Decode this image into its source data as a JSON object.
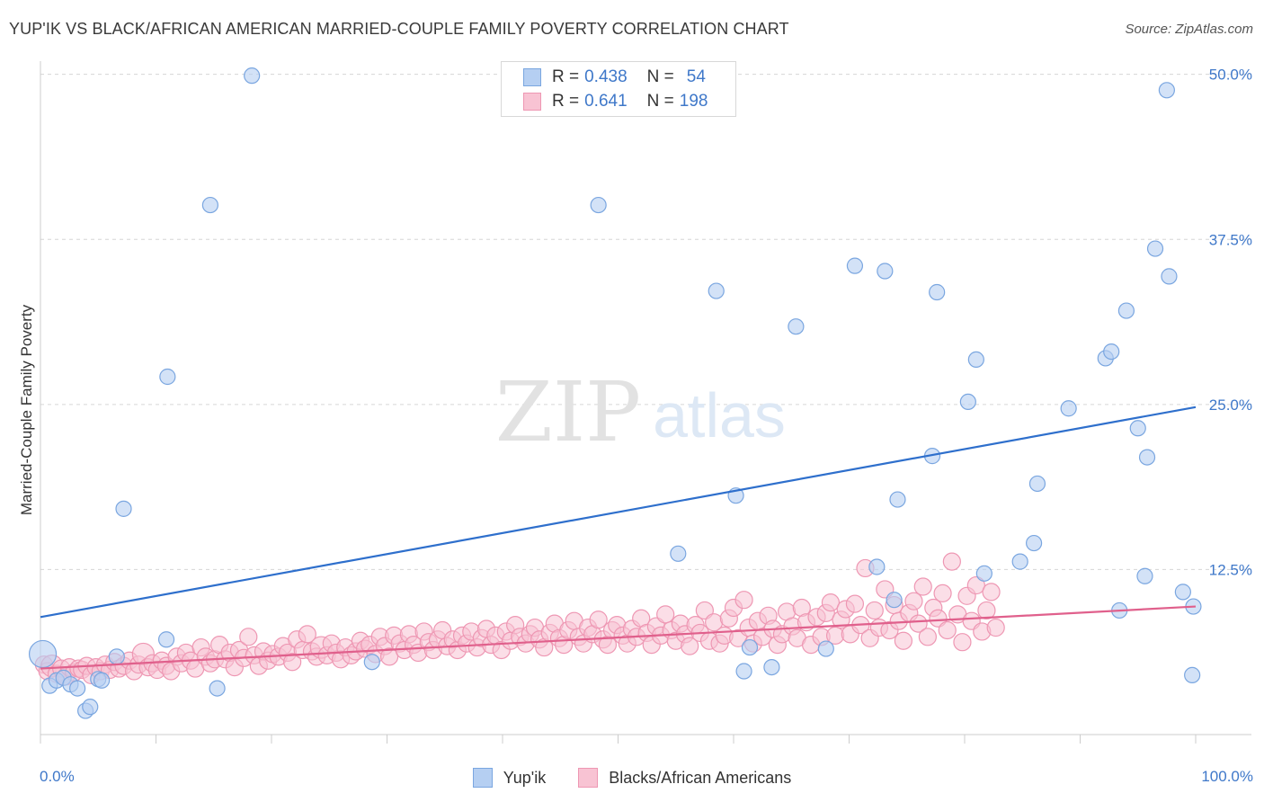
{
  "title": "YUP'IK VS BLACK/AFRICAN AMERICAN MARRIED-COUPLE FAMILY POVERTY CORRELATION CHART",
  "source": "Source: ZipAtlas.com",
  "watermark": {
    "zip": "ZIP",
    "atlas": "atlas"
  },
  "legend": {
    "rows": [
      {
        "r_label": "R =",
        "r_value": "0.438",
        "n_label": "N =",
        "n_value": "54"
      },
      {
        "r_label": "R =",
        "r_value": "0.641",
        "n_label": "N =",
        "n_value": "198"
      }
    ]
  },
  "chart_data": {
    "type": "scatter",
    "title": "YUP'IK VS BLACK/AFRICAN AMERICAN MARRIED-COUPLE FAMILY POVERTY CORRELATION CHART",
    "xlabel": "",
    "ylabel": "Married-Couple Family Poverty",
    "xlim": [
      0,
      100
    ],
    "ylim": [
      0,
      51
    ],
    "x_tick_labels": [
      "0.0%",
      "100.0%"
    ],
    "y_ticks": [
      12.5,
      25.0,
      37.5,
      50.0
    ],
    "y_tick_labels": [
      "12.5%",
      "25.0%",
      "37.5%",
      "50.0%"
    ],
    "grid": "horizontal dashed",
    "legend_position": "top-center",
    "colors": {
      "yupik_fill": "#b5cff2",
      "yupik_stroke": "#7aa6e0",
      "yupik_line": "#2e6fcc",
      "black_fill": "#f8c3d3",
      "black_stroke": "#ee97b3",
      "black_line": "#e0608c",
      "tick_label": "#3f78c9"
    },
    "series": [
      {
        "name": "Yup'ik",
        "trend": {
          "x": [
            0,
            100
          ],
          "y": [
            8.9,
            24.8
          ]
        },
        "points": [
          [
            0.2,
            6.1
          ],
          [
            0.8,
            3.7
          ],
          [
            1.4,
            4.1
          ],
          [
            2.0,
            4.3
          ],
          [
            2.6,
            3.8
          ],
          [
            3.2,
            3.5
          ],
          [
            3.9,
            1.8
          ],
          [
            4.3,
            2.1
          ],
          [
            5.0,
            4.2
          ],
          [
            5.3,
            4.1
          ],
          [
            6.6,
            5.9
          ],
          [
            7.2,
            17.1
          ],
          [
            11.0,
            27.1
          ],
          [
            10.9,
            7.2
          ],
          [
            14.7,
            40.1
          ],
          [
            15.3,
            3.5
          ],
          [
            18.3,
            49.9
          ],
          [
            28.7,
            5.5
          ],
          [
            48.3,
            40.1
          ],
          [
            55.2,
            13.7
          ],
          [
            58.5,
            33.6
          ],
          [
            60.2,
            18.1
          ],
          [
            60.9,
            4.8
          ],
          [
            61.4,
            6.6
          ],
          [
            63.3,
            5.1
          ],
          [
            65.4,
            30.9
          ],
          [
            68.0,
            6.5
          ],
          [
            70.5,
            35.5
          ],
          [
            72.4,
            12.7
          ],
          [
            73.1,
            35.1
          ],
          [
            73.9,
            10.2
          ],
          [
            74.2,
            17.8
          ],
          [
            77.2,
            21.1
          ],
          [
            77.6,
            33.5
          ],
          [
            80.3,
            25.2
          ],
          [
            81.0,
            28.4
          ],
          [
            81.7,
            12.2
          ],
          [
            84.8,
            13.1
          ],
          [
            86.3,
            19.0
          ],
          [
            86.0,
            14.5
          ],
          [
            89.0,
            24.7
          ],
          [
            92.2,
            28.5
          ],
          [
            92.7,
            29.0
          ],
          [
            93.4,
            9.4
          ],
          [
            94.0,
            32.1
          ],
          [
            95.0,
            23.2
          ],
          [
            95.6,
            12.0
          ],
          [
            95.8,
            21.0
          ],
          [
            96.5,
            36.8
          ],
          [
            97.5,
            48.8
          ],
          [
            97.7,
            34.7
          ],
          [
            98.9,
            10.8
          ],
          [
            99.7,
            4.5
          ],
          [
            99.8,
            9.7
          ]
        ]
      },
      {
        "name": "Blacks/African Americans",
        "trend": {
          "x": [
            0,
            100
          ],
          "y": [
            5.0,
            9.7
          ]
        },
        "points": [
          [
            0.3,
            5.3
          ],
          [
            0.6,
            4.8
          ],
          [
            1.0,
            5.2
          ],
          [
            1.4,
            4.6
          ],
          [
            1.8,
            5.0
          ],
          [
            2.2,
            4.4
          ],
          [
            2.5,
            5.1
          ],
          [
            2.9,
            4.7
          ],
          [
            3.3,
            5.0
          ],
          [
            3.6,
            4.9
          ],
          [
            4.0,
            5.2
          ],
          [
            4.4,
            4.5
          ],
          [
            4.8,
            5.1
          ],
          [
            5.2,
            4.8
          ],
          [
            5.6,
            5.3
          ],
          [
            6.0,
            4.9
          ],
          [
            6.4,
            5.5
          ],
          [
            6.8,
            5.0
          ],
          [
            7.2,
            5.2
          ],
          [
            7.7,
            5.6
          ],
          [
            8.1,
            4.8
          ],
          [
            8.5,
            5.3
          ],
          [
            8.9,
            6.1
          ],
          [
            9.3,
            5.1
          ],
          [
            9.7,
            5.4
          ],
          [
            10.1,
            4.9
          ],
          [
            10.5,
            5.6
          ],
          [
            10.9,
            5.2
          ],
          [
            11.3,
            4.8
          ],
          [
            11.8,
            5.9
          ],
          [
            12.2,
            5.4
          ],
          [
            12.6,
            6.2
          ],
          [
            13.0,
            5.6
          ],
          [
            13.4,
            5.0
          ],
          [
            13.9,
            6.6
          ],
          [
            14.3,
            5.9
          ],
          [
            14.7,
            5.4
          ],
          [
            15.1,
            5.7
          ],
          [
            15.5,
            6.8
          ],
          [
            16.0,
            5.7
          ],
          [
            16.4,
            6.2
          ],
          [
            16.8,
            5.1
          ],
          [
            17.2,
            6.4
          ],
          [
            17.6,
            5.8
          ],
          [
            18.0,
            7.4
          ],
          [
            18.5,
            6.0
          ],
          [
            18.9,
            5.2
          ],
          [
            19.3,
            6.3
          ],
          [
            19.7,
            5.6
          ],
          [
            20.1,
            6.1
          ],
          [
            20.6,
            5.9
          ],
          [
            21.0,
            6.7
          ],
          [
            21.4,
            6.2
          ],
          [
            21.8,
            5.5
          ],
          [
            22.2,
            7.2
          ],
          [
            22.7,
            6.4
          ],
          [
            23.1,
            7.6
          ],
          [
            23.5,
            6.3
          ],
          [
            23.9,
            5.9
          ],
          [
            24.3,
            6.6
          ],
          [
            24.8,
            6.0
          ],
          [
            25.2,
            6.9
          ],
          [
            25.6,
            6.2
          ],
          [
            26.0,
            5.7
          ],
          [
            26.4,
            6.6
          ],
          [
            26.9,
            6.0
          ],
          [
            27.3,
            6.3
          ],
          [
            27.7,
            7.1
          ],
          [
            28.1,
            6.5
          ],
          [
            28.5,
            6.8
          ],
          [
            29.0,
            6.1
          ],
          [
            29.4,
            7.4
          ],
          [
            29.8,
            6.7
          ],
          [
            30.2,
            5.9
          ],
          [
            30.6,
            7.5
          ],
          [
            31.1,
            6.9
          ],
          [
            31.5,
            6.4
          ],
          [
            31.9,
            7.6
          ],
          [
            32.3,
            6.8
          ],
          [
            32.7,
            6.2
          ],
          [
            33.2,
            7.8
          ],
          [
            33.6,
            7.0
          ],
          [
            34.0,
            6.4
          ],
          [
            34.4,
            7.2
          ],
          [
            34.8,
            7.9
          ],
          [
            35.2,
            6.7
          ],
          [
            35.7,
            7.2
          ],
          [
            36.1,
            6.4
          ],
          [
            36.5,
            7.5
          ],
          [
            36.9,
            6.9
          ],
          [
            37.3,
            7.8
          ],
          [
            37.8,
            6.6
          ],
          [
            38.2,
            7.3
          ],
          [
            38.6,
            8.0
          ],
          [
            39.0,
            6.8
          ],
          [
            39.4,
            7.5
          ],
          [
            39.9,
            6.4
          ],
          [
            40.3,
            7.8
          ],
          [
            40.7,
            7.1
          ],
          [
            41.1,
            8.3
          ],
          [
            41.5,
            7.4
          ],
          [
            42.0,
            6.9
          ],
          [
            42.4,
            7.6
          ],
          [
            42.8,
            8.1
          ],
          [
            43.2,
            7.2
          ],
          [
            43.6,
            6.6
          ],
          [
            44.1,
            7.7
          ],
          [
            44.5,
            8.4
          ],
          [
            44.9,
            7.3
          ],
          [
            45.3,
            6.8
          ],
          [
            45.7,
            7.9
          ],
          [
            46.2,
            8.6
          ],
          [
            46.6,
            7.4
          ],
          [
            47.0,
            6.9
          ],
          [
            47.4,
            8.1
          ],
          [
            47.8,
            7.6
          ],
          [
            48.3,
            8.7
          ],
          [
            48.7,
            7.2
          ],
          [
            49.1,
            6.8
          ],
          [
            49.5,
            7.9
          ],
          [
            49.9,
            8.3
          ],
          [
            50.4,
            7.5
          ],
          [
            50.8,
            6.9
          ],
          [
            51.2,
            8.0
          ],
          [
            51.6,
            7.4
          ],
          [
            52.0,
            8.8
          ],
          [
            52.5,
            7.7
          ],
          [
            52.9,
            6.8
          ],
          [
            53.3,
            8.2
          ],
          [
            53.7,
            7.5
          ],
          [
            54.1,
            9.1
          ],
          [
            54.6,
            7.9
          ],
          [
            55.0,
            7.1
          ],
          [
            55.4,
            8.4
          ],
          [
            55.8,
            7.6
          ],
          [
            56.2,
            6.7
          ],
          [
            56.7,
            8.3
          ],
          [
            57.1,
            7.7
          ],
          [
            57.5,
            9.4
          ],
          [
            57.9,
            7.1
          ],
          [
            58.3,
            8.5
          ],
          [
            58.8,
            6.9
          ],
          [
            59.2,
            7.5
          ],
          [
            59.6,
            8.8
          ],
          [
            60.0,
            9.6
          ],
          [
            60.4,
            7.3
          ],
          [
            60.9,
            10.2
          ],
          [
            61.3,
            8.1
          ],
          [
            61.7,
            6.9
          ],
          [
            62.1,
            8.6
          ],
          [
            62.5,
            7.4
          ],
          [
            63.0,
            9.0
          ],
          [
            63.4,
            8.0
          ],
          [
            63.8,
            6.8
          ],
          [
            64.2,
            7.6
          ],
          [
            64.6,
            9.3
          ],
          [
            65.1,
            8.2
          ],
          [
            65.5,
            7.3
          ],
          [
            65.9,
            9.6
          ],
          [
            66.3,
            8.5
          ],
          [
            66.7,
            6.8
          ],
          [
            67.2,
            8.9
          ],
          [
            67.6,
            7.4
          ],
          [
            68.0,
            9.2
          ],
          [
            68.4,
            10.0
          ],
          [
            68.8,
            7.5
          ],
          [
            69.3,
            8.7
          ],
          [
            69.7,
            9.5
          ],
          [
            70.1,
            7.6
          ],
          [
            70.5,
            9.9
          ],
          [
            71.0,
            8.3
          ],
          [
            71.4,
            12.6
          ],
          [
            71.8,
            7.3
          ],
          [
            72.2,
            9.4
          ],
          [
            72.6,
            8.1
          ],
          [
            73.1,
            11.0
          ],
          [
            73.5,
            7.9
          ],
          [
            73.9,
            9.8
          ],
          [
            74.3,
            8.6
          ],
          [
            74.7,
            7.1
          ],
          [
            75.2,
            9.2
          ],
          [
            75.6,
            10.1
          ],
          [
            76.0,
            8.4
          ],
          [
            76.4,
            11.2
          ],
          [
            76.8,
            7.4
          ],
          [
            77.3,
            9.6
          ],
          [
            77.7,
            8.8
          ],
          [
            78.1,
            10.7
          ],
          [
            78.5,
            7.9
          ],
          [
            78.9,
            13.1
          ],
          [
            79.4,
            9.1
          ],
          [
            79.8,
            7.0
          ],
          [
            80.2,
            10.5
          ],
          [
            80.6,
            8.6
          ],
          [
            81.0,
            11.3
          ],
          [
            81.5,
            7.8
          ],
          [
            81.9,
            9.4
          ],
          [
            82.3,
            10.8
          ],
          [
            82.7,
            8.1
          ]
        ]
      }
    ]
  },
  "bottom_legend": [
    {
      "label": "Yup'ik"
    },
    {
      "label": "Blacks/African Americans"
    }
  ]
}
